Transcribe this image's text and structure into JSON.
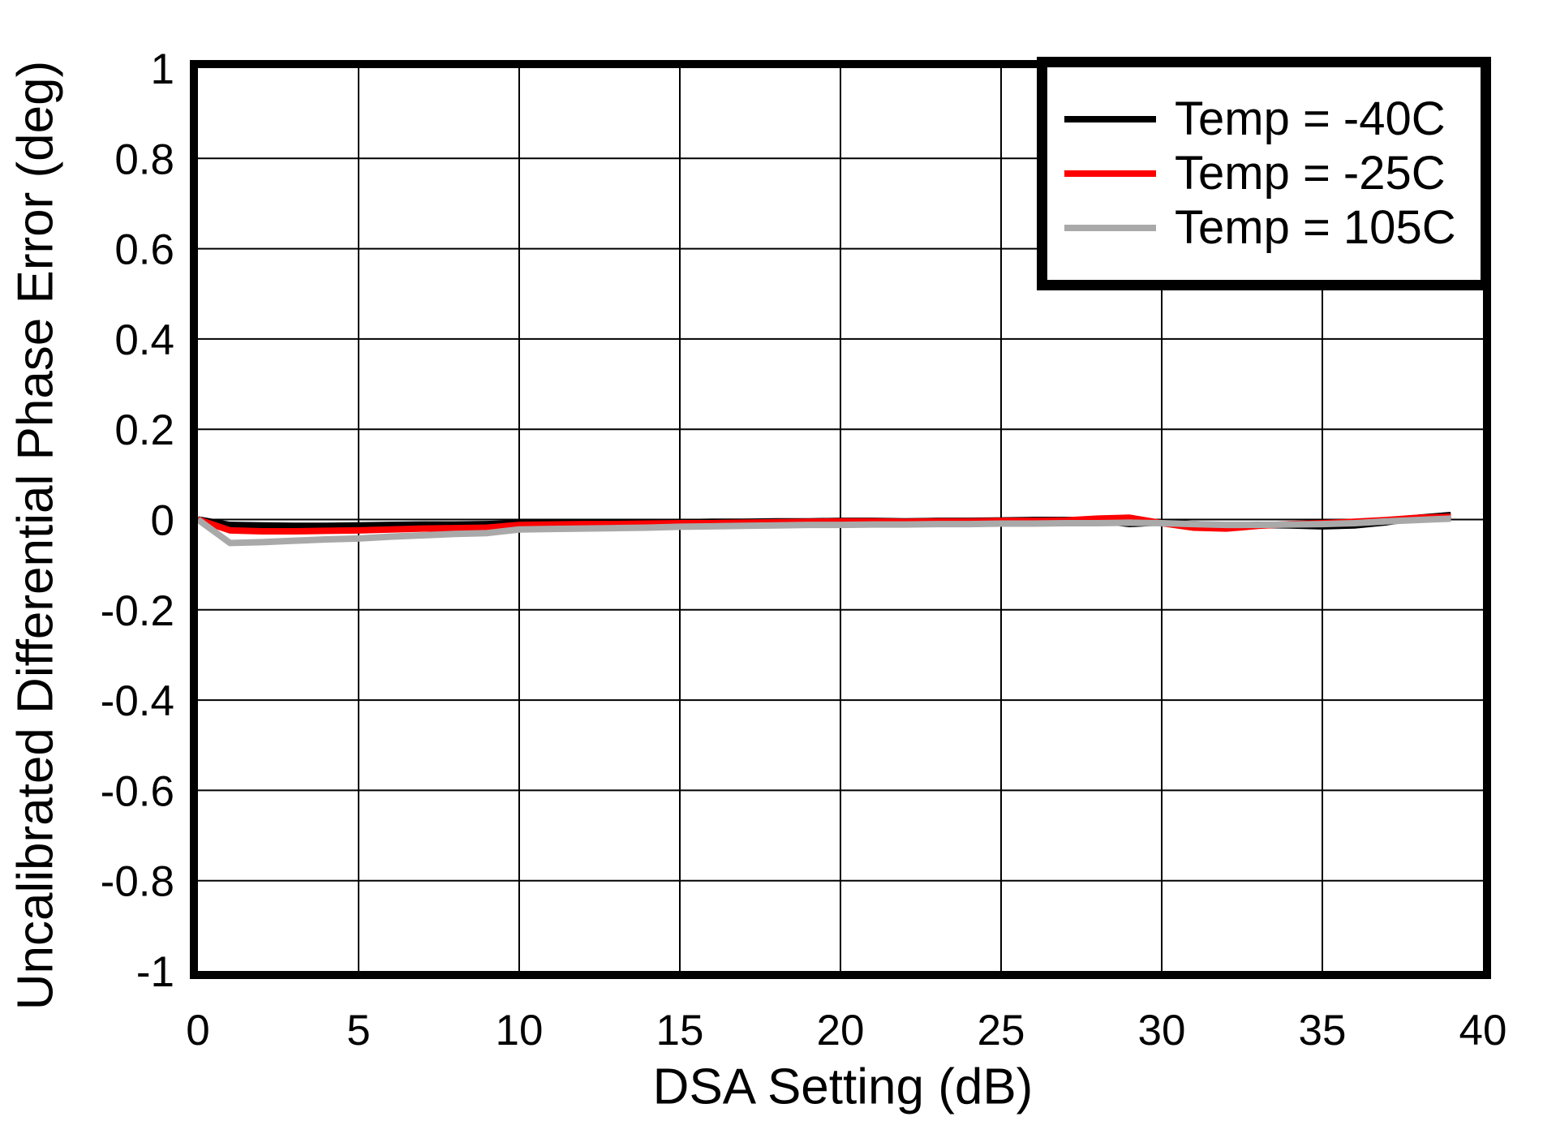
{
  "figure": {
    "background": "#FFFFFF",
    "frame_color": "#000000",
    "grid_color": "#000000"
  },
  "chart_data": {
    "type": "line",
    "title": "",
    "xlabel": "DSA Setting (dB)",
    "ylabel": "Uncalibrated Differential Phase Error (deg)",
    "xlim": [
      0,
      40
    ],
    "ylim": [
      -1,
      1
    ],
    "grid": true,
    "legend_position": "top-right",
    "xtick_values": [
      0,
      5,
      10,
      15,
      20,
      25,
      30,
      35,
      40
    ],
    "xtick_labels": [
      "0",
      "5",
      "10",
      "15",
      "20",
      "25",
      "30",
      "35",
      "40"
    ],
    "ytick_values": [
      1,
      0.8,
      0.6,
      0.4,
      0.2,
      0,
      -0.2,
      -0.4,
      -0.6,
      -0.8,
      -1
    ],
    "ytick_labels": [
      "1",
      "0.8",
      "0.6",
      "0.4",
      "0.2",
      "0",
      "-0.2",
      "-0.4",
      "-0.6",
      "-0.8",
      "-1"
    ],
    "x": [
      0,
      1,
      2,
      3,
      4,
      5,
      6,
      7,
      8,
      9,
      10,
      11,
      12,
      13,
      14,
      15,
      16,
      17,
      18,
      19,
      20,
      21,
      22,
      23,
      24,
      25,
      26,
      27,
      28,
      29,
      30,
      31,
      32,
      33,
      34,
      35,
      36,
      37,
      38,
      39
    ],
    "series": [
      {
        "name": "Temp = -40C",
        "color": "#000000",
        "values": [
          0.0,
          -0.012,
          -0.013,
          -0.014,
          -0.014,
          -0.013,
          -0.012,
          -0.011,
          -0.011,
          -0.01,
          -0.008,
          -0.008,
          -0.007,
          -0.007,
          -0.006,
          -0.006,
          -0.005,
          -0.005,
          -0.004,
          -0.004,
          -0.003,
          -0.003,
          -0.004,
          -0.003,
          -0.003,
          -0.002,
          -0.001,
          -0.001,
          -0.002,
          -0.01,
          -0.006,
          -0.01,
          -0.014,
          -0.012,
          -0.013,
          -0.015,
          -0.013,
          -0.006,
          0.004,
          0.01
        ]
      },
      {
        "name": "Temp = -25C",
        "color": "#FF0000",
        "values": [
          0.0,
          -0.024,
          -0.026,
          -0.026,
          -0.025,
          -0.024,
          -0.022,
          -0.02,
          -0.019,
          -0.018,
          -0.012,
          -0.011,
          -0.01,
          -0.01,
          -0.009,
          -0.008,
          -0.008,
          -0.007,
          -0.006,
          -0.005,
          -0.004,
          -0.004,
          -0.005,
          -0.004,
          -0.004,
          -0.003,
          -0.003,
          -0.002,
          0.002,
          0.004,
          -0.008,
          -0.018,
          -0.02,
          -0.014,
          -0.01,
          -0.008,
          -0.005,
          -0.001,
          0.004,
          0.006
        ]
      },
      {
        "name": "Temp = 105C",
        "color": "#A9A9A9",
        "values": [
          0.0,
          -0.052,
          -0.05,
          -0.047,
          -0.044,
          -0.042,
          -0.038,
          -0.035,
          -0.032,
          -0.03,
          -0.022,
          -0.021,
          -0.02,
          -0.019,
          -0.018,
          -0.016,
          -0.015,
          -0.014,
          -0.013,
          -0.012,
          -0.012,
          -0.011,
          -0.011,
          -0.01,
          -0.01,
          -0.009,
          -0.009,
          -0.008,
          -0.008,
          -0.007,
          -0.008,
          -0.01,
          -0.012,
          -0.012,
          -0.011,
          -0.01,
          -0.008,
          -0.004,
          -0.001,
          0.002
        ]
      }
    ]
  }
}
